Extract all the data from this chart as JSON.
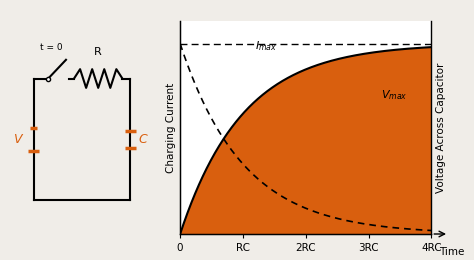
{
  "bg_color": "#f0ede8",
  "orange_color": "#d95f0e",
  "plot_area_bg": "#ffffff",
  "fill_color": "#d95f0e",
  "dashed_line_color": "#000000",
  "solid_curve_color": "#000000",
  "xlabel_time": "Time",
  "ylabel_left": "Charging Current",
  "ylabel_right": "Voltage Across Capacitor",
  "x_ticks": [
    "0",
    "RC",
    "2RC",
    "3RC",
    "4RC"
  ],
  "x_tick_vals": [
    0,
    1,
    2,
    3,
    4
  ],
  "tau_max": 4
}
